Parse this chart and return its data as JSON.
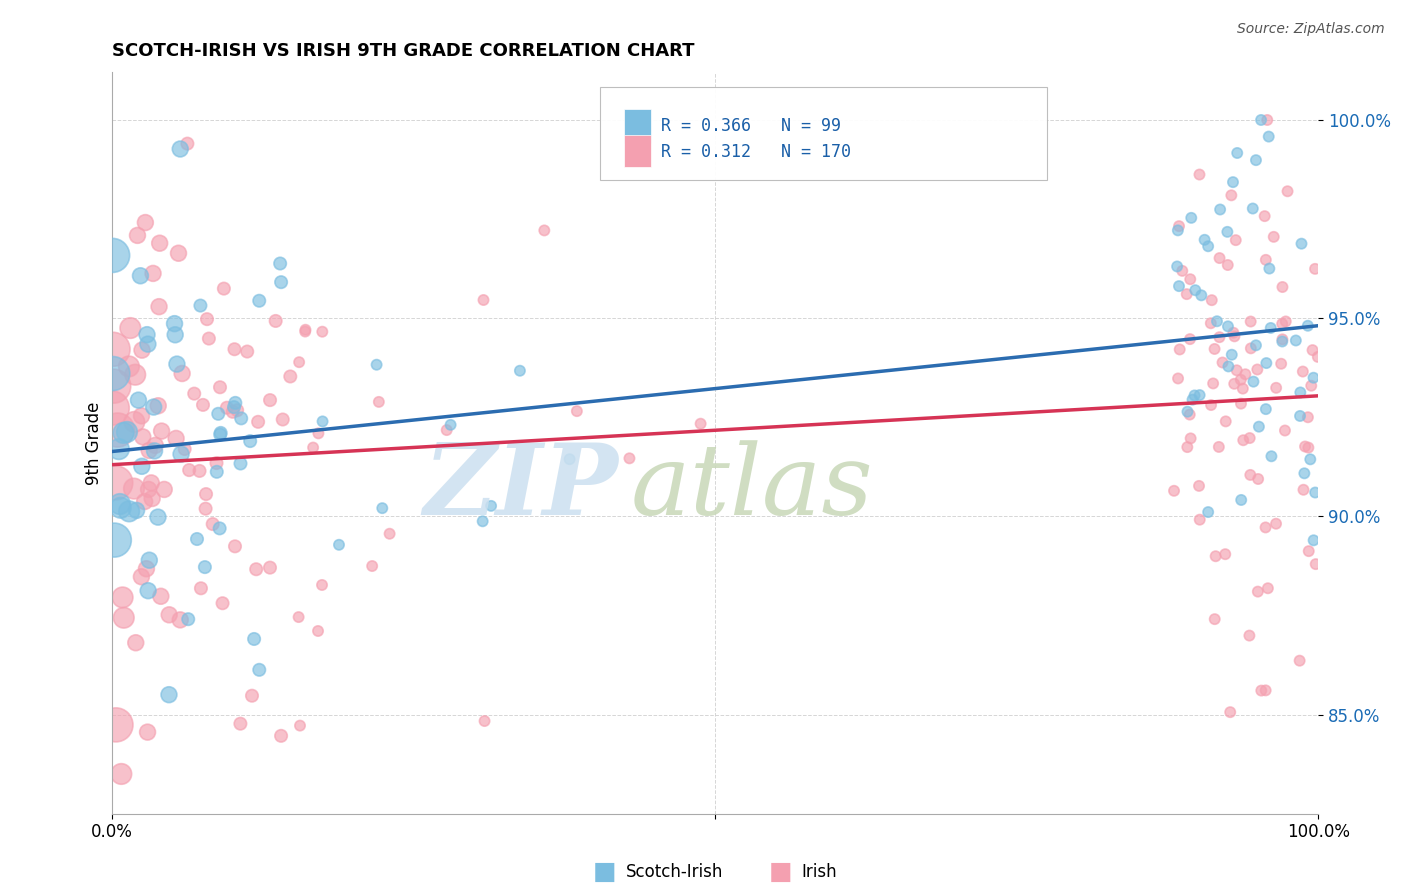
{
  "title": "SCOTCH-IRISH VS IRISH 9TH GRADE CORRELATION CHART",
  "source": "Source: ZipAtlas.com",
  "ylabel": "9th Grade",
  "yticks": [
    0.85,
    0.9,
    0.95,
    1.0
  ],
  "ytick_labels": [
    "85.0%",
    "90.0%",
    "95.0%",
    "100.0%"
  ],
  "xlim": [
    0.0,
    1.0
  ],
  "ylim": [
    0.825,
    1.012
  ],
  "series": [
    {
      "name": "Scotch-Irish",
      "color": "#7bbde0",
      "R": 0.366,
      "N": 99,
      "line_color": "#2b6cb0"
    },
    {
      "name": "Irish",
      "color": "#f4a0b0",
      "R": 0.312,
      "N": 170,
      "line_color": "#d63355"
    }
  ],
  "legend_R_scotchirish": "0.366",
  "legend_N_scotchirish": "99",
  "legend_R_irish": "0.312",
  "legend_N_irish": "170",
  "background_color": "#ffffff",
  "grid_color": "#cccccc",
  "watermark_zip_color": "#cce0f0",
  "watermark_atlas_color": "#c8d8b8"
}
